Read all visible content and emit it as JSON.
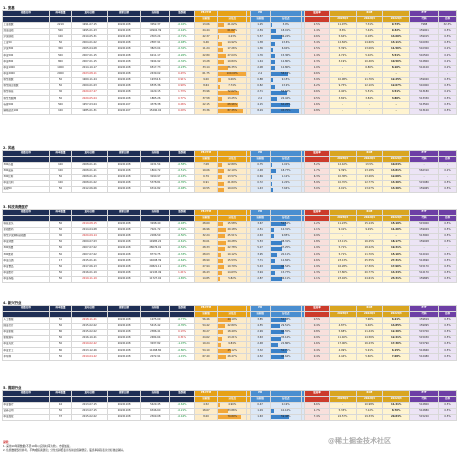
{
  "headers": {
    "row1": [
      "指数名称",
      "样本数量",
      "发布日期",
      "更新日期",
      "当前值",
      "涨跌幅",
      "PE-TTM",
      "",
      "",
      "PB",
      "",
      "",
      "股息率",
      "",
      "ROE",
      "",
      "ETF",
      ""
    ],
    "row2": [
      "",
      "",
      "",
      "",
      "",
      "",
      "当前值",
      "分位点",
      "",
      "当前值",
      "分位点",
      "",
      "",
      "2023Q3",
      "2022Q4",
      "2022Q3",
      "代码",
      "名称"
    ]
  },
  "colors": {
    "nav": "#1f2f55",
    "pe": "#e6a117",
    "pb": "#4a8ed0",
    "dividend": "#cc3b2b",
    "roe": "#d9a520",
    "etf": "#6d3fa5",
    "up": "#0a8a2e",
    "down": "#c81f1f",
    "pe_bar": "#f2a73a",
    "pb_bar": "#3b82c9"
  },
  "sections": [
    {
      "title": "1. 宽基",
      "rows": [
        [
          "上证指数",
          "2219",
          "1991-07-15",
          "20221108",
          "3052.37",
          "-0.16%",
          "13.06",
          "21.02%",
          "",
          "1.25",
          "3.9%",
          "",
          "2.5%",
          "11.97%",
          "7.31%",
          "9.73%",
          "7988",
          "32.3%"
        ],
        [
          "深证成指",
          "500",
          "1995-01-23",
          "20221108",
          "10902.39",
          "-0.44%",
          "24.44",
          "61.62%",
          "",
          "2.59",
          "18.01%",
          "",
          "1.4%",
          "8.6%",
          "7.44%",
          "9.32%",
          "159901",
          "0.5%"
        ],
        [
          "沪深创指",
          "100",
          "2010-05-31",
          "20221108",
          "2303.24",
          "-0.71%",
          "42.37",
          "4.23%",
          "",
          "5.57",
          "36.24%",
          "",
          "0.6%",
          "5.64%",
          "6.18%",
          "14.60%",
          "159915",
          "0.5%"
        ],
        [
          "上证50",
          "50",
          "2004-01-02",
          "20221108",
          "2587.91",
          "-0.48%",
          "9.46",
          "14.92%",
          "",
          "1.38",
          "13.6%",
          "",
          "3.4%",
          "12.84%",
          "14.60%",
          "13.11%",
          "510050",
          "0.5%"
        ],
        [
          "沪深300",
          "300",
          "2005-04-08",
          "20221108",
          "3823.04",
          "-0.32%",
          "11.24",
          "17.26%",
          "",
          "1.36",
          "6.60%",
          "",
          "2.5%",
          "5.39%",
          "13.06%",
          "11.56%",
          "510300",
          "0.2%"
        ],
        [
          "中证500",
          "500",
          "2007-01-15",
          "20221108",
          "6211.17",
          "-0.26%",
          "22.80",
          "27.04%",
          "",
          "1.76",
          "15.36%",
          "",
          "1.4%",
          "4.72%",
          "5.02%",
          "5.51%",
          "510500",
          "0.2%"
        ],
        [
          "中证800",
          "800",
          "2007-01-15",
          "20221108",
          "3944.92",
          "-0.32%",
          "13.28",
          "19.84%",
          "",
          "1.44",
          "12.80%",
          "",
          "2.3%",
          "3.19%",
          "10.46%",
          "10.56%",
          "512800",
          "0.2%"
        ],
        [
          "中证1000",
          "1000",
          "2014-10-17",
          "20221108",
          "6517.73",
          "-0.23%",
          "33.14",
          "36.35%",
          "",
          "2.08",
          "12.80%",
          "",
          "1.0%",
          "-",
          "6.80%",
          "8.10%",
          "512100",
          "0.2%"
        ],
        [
          "中证2000",
          "2000",
          "2023-08-11",
          "20221108",
          "2439.02",
          "0.43%",
          "61.75",
          "100.00%",
          "",
          "2.4",
          "58.11%",
          "",
          "0.6%",
          "-",
          "-",
          "-",
          "-",
          "-"
        ],
        [
          "恒生指数",
          "50",
          "1969-11-24",
          "20221108",
          "19334.6",
          "0.91%",
          "9.00",
          "9.06%",
          "",
          "0.88",
          "9.15%",
          "",
          "3.9%",
          "10.98%",
          "11.76%",
          "12.25%",
          "159920",
          "0.5%"
        ],
        [
          "恒生国企指数",
          "50",
          "2000-01-03",
          "20221108",
          "6535.36",
          "0.99%",
          "8.64",
          "7.74%",
          "",
          "0.82",
          "13.9%",
          "",
          "4.2%",
          "9.75%",
          "12.10%",
          "12.07%",
          "510900",
          "0.5%"
        ],
        [
          "恒生科技",
          "30",
          "2020-07-27",
          "20221108",
          "4129.15",
          "1.73%",
          "33.96",
          "72.62%",
          "",
          "2.71",
          "55.62%",
          "",
          "0.6%",
          "4.40%",
          "5.51%",
          "4.51%",
          "513180",
          "0.2%"
        ],
        [
          "恒生互联网",
          "50",
          "2020-05-04",
          "20221108",
          "1865.26",
          "0.77%",
          "37.58",
          "13.25%",
          "",
          "2.2",
          "22.42%",
          "",
          "0.5%",
          "3.82%",
          "3.84%",
          "3.80%",
          "513330",
          "0.5%"
        ],
        [
          "标普500",
          "500",
          "1957-03-04",
          "20221107",
          "4378.38",
          "0.26%",
          "22.15",
          "68.96%",
          "",
          "4.15",
          "64.28%",
          "",
          "1.6%",
          "-",
          "-",
          "-",
          "513500",
          "0.5%"
        ],
        [
          "纳斯达克100",
          "100",
          "1985-01-31",
          "20221107",
          "15290.02",
          "0.29%",
          "33.36",
          "87.35%",
          "",
          "8.29",
          "93.75%",
          "",
          "0.8%",
          "-",
          "-",
          "-",
          "513100",
          "0.5%"
        ]
      ]
    },
    {
      "title": "2. 风格",
      "rows": [
        [
          "300价值",
          "100",
          "2008-01-21",
          "20221108",
          "4131.54",
          "-0.58%",
          "7.08",
          "12.89%",
          "",
          "0.75",
          "1.01%",
          "",
          "5.2%",
          "12.42%",
          "13.5%",
          "10.64%",
          "-",
          "-"
        ],
        [
          "300成长",
          "100",
          "2008-01-21",
          "20221108",
          "1800.72",
          "-0.51%",
          "19.06",
          "22.10%",
          "",
          "2.48",
          "18.77%",
          "",
          "1.7%",
          "9.39%",
          "13.18%",
          "13.81%",
          "562310",
          "0.2%"
        ],
        [
          "300红利",
          "50",
          "2008-01-21",
          "20221108",
          "3290.97",
          "-0.43%",
          "6.79",
          "13.57%",
          "",
          "0.69",
          "1.12%",
          "",
          "6.3%",
          "10.38%",
          "13.26%",
          "12.08%",
          "-",
          "-"
        ],
        [
          "中证红利",
          "100",
          "2008-01-02",
          "20221108",
          "5378.81",
          "-0.35%",
          "6.91",
          "21.84%",
          "",
          "0.72",
          "2.20%",
          "",
          "5.9%",
          "10.70%",
          "12.77%",
          "13.40%",
          "515080",
          "0.5%"
        ],
        [
          "央视50",
          "50",
          "2012-06-06",
          "20221108",
          "6314.82",
          "-0.48%",
          "10.55",
          "19.04%",
          "",
          "1.43",
          "7.64%",
          "",
          "3.0%",
          "4.01%",
          "13.07%",
          "13.40%",
          "159965",
          "0.5%"
        ]
      ]
    },
    {
      "title": "3. 科技消费医疗",
      "rows": [
        [
          "科技龙头",
          "50",
          "2019-08-15",
          "20221108",
          "3298.40",
          "-0.48%",
          "28.69",
          "15.58%",
          "",
          "3.67",
          "51.52%",
          "",
          "1.2%",
          "11.23%",
          "15.14%",
          "15.19%",
          "515000",
          "0.5%"
        ],
        [
          "全指医药",
          "50",
          "2014-04-08",
          "20221108",
          "7021.72",
          "-0.59%",
          "26.96",
          "29.18%",
          "",
          "2.51",
          "12.31%",
          "",
          "1.1%",
          "9.41%",
          "9.29%",
          "11.26%",
          "159929",
          "0.5%"
        ],
        [
          "恒生沪深港科技指数",
          "30",
          "2020-09-14",
          "20221108",
          "2186.59",
          "-0.50%",
          "32.24",
          "25.51%",
          "",
          "2.63",
          "9.85%",
          "",
          "0.9%",
          "-",
          "-",
          "-",
          "513900",
          "0.5%"
        ],
        [
          "中证消费",
          "50",
          "2009-07-03",
          "20221108",
          "14985.22",
          "-0.61%",
          "30.01",
          "29.28%",
          "",
          "5.53",
          "38.31%",
          "",
          "1.8%",
          "13.11%",
          "16.25%",
          "18.17%",
          "159928",
          "0.5%"
        ],
        [
          "300消费",
          "50",
          "2007-07-02",
          "20221108",
          "28076.91",
          "-0.52%",
          "28.33",
          "22.78%",
          "",
          "5.27",
          "37.25%",
          "",
          "1.9%",
          "5.71%",
          "18.22%",
          "19.31%",
          "-",
          "-"
        ],
        [
          "300医药",
          "50",
          "2007-07-02",
          "20221108",
          "8770.75",
          "-0.33%",
          "28.03",
          "10.12%",
          "",
          "3.95",
          "20.11%",
          "",
          "1.0%",
          "5.71%",
          "11.70%",
          "15.16%",
          "512010",
          "0.5%"
        ],
        [
          "中证白酒",
          "17",
          "2015-01-21",
          "20221108",
          "14008.39",
          "-0.64%",
          "28.90",
          "15.53%",
          "",
          "7.71",
          "12.84%",
          "",
          "2.6%",
          "23.13%",
          "25.55%",
          "27.31%",
          "512690",
          "0.5%"
        ],
        [
          "中证食品",
          "50",
          "2017-06-13",
          "20221108",
          "20821.11",
          "-0.23%",
          "27.94",
          "19.79%",
          "",
          "5.43",
          "44.54%",
          "",
          "1.9%",
          "16.28%",
          "17.30%",
          "17.96%",
          "515170",
          "0.5%"
        ],
        [
          "中证医疗",
          "50",
          "2016-01-19",
          "20221108",
          "12145.49",
          "1.21%",
          "26.43",
          "14.63%",
          "",
          "3.94",
          "15.77%",
          "",
          "1.3%",
          "17.80%",
          "20.77%",
          "14.44%",
          "512170",
          "0.5%"
        ],
        [
          "中证养殖",
          "50",
          "2019-11-19",
          "20221108",
          "11727.02",
          "-1.65%",
          "14.85",
          "5.82%",
          "",
          "2.87",
          "36.11%",
          "",
          "1.1%",
          "23.94%",
          "24.61%",
          "23.31%",
          "159865",
          "0.5%"
        ]
      ]
    },
    {
      "title": "4. 新兴行业",
      "rows": [
        [
          "人工智能",
          "50",
          "2018-11-21",
          "20221108",
          "1075.09",
          "-0.77%",
          "56.46",
          "44.19%",
          "",
          "3.85",
          "52.38%",
          "",
          "0.5%",
          "-",
          "7.96%",
          "6.21%",
          "159819",
          "0.5%"
        ],
        [
          "国证芯片",
          "50",
          "2015-02-02",
          "20221108",
          "5415.42",
          "-0.35%",
          "54.42",
          "22.80%",
          "",
          "4.55",
          "29.51%",
          "",
          "0.4%",
          "4.87%",
          "9.46%",
          "14.85%",
          "159995",
          "0.5%"
        ],
        [
          "中证新能",
          "80",
          "2015-02-02",
          "20221108",
          "2386.41",
          "0.13%",
          "30.27",
          "18.49%",
          "",
          "2.99",
          "44.55%",
          "",
          "0.8%",
          "5.68%",
          "11.44%",
          "12.40%",
          "515700",
          "0.5%"
        ],
        [
          "新能源车",
          "50",
          "2016-10-21",
          "20221108",
          "2484.64",
          "0.31%",
          "24.62",
          "13.21%",
          "",
          "3.63",
          "35.14%",
          "",
          "0.9%",
          "11.40%",
          "14.56%",
          "12.41%",
          "515030",
          "0.5%"
        ],
        [
          "中证光伏",
          "50",
          "2019-02-22",
          "20221108",
          "3037.82",
          "-1.07%",
          "19.24",
          "9.84%",
          "",
          "2.48",
          "22.86%",
          "",
          "1.6%",
          "17.06%",
          "16.23%",
          "17.36%",
          "515790",
          "0.5%"
        ],
        [
          "中证军工",
          "80",
          "2013-12-26",
          "20221108",
          "11268.80",
          "-0.80%",
          "54.10",
          "45.12%",
          "",
          "3.32",
          "52.71%",
          "",
          "0.4%",
          "4.99%",
          "5.91%",
          "6.15%",
          "512660",
          "0.5%"
        ],
        [
          "半导体",
          "50",
          "2019-04-22",
          "20221108",
          "2072.91",
          "-1.15%",
          "67.40",
          "28.47%",
          "",
          "4.52",
          "45.64%",
          "",
          "0.4%",
          "4.44%",
          "5.60%",
          "7.08%",
          "512480",
          "0.5%"
        ]
      ]
    },
    {
      "title": "5. 周期行业",
      "rows": [
        [
          "中证银行",
          "42",
          "2013-07-15",
          "20221108",
          "5429.45",
          "-0.64%",
          "4.52",
          "4.90%",
          "",
          "0.47",
          "0.19%",
          "",
          "6.6%",
          "-",
          "10.98%",
          "11.41%",
          "512800",
          "0.5%"
        ],
        [
          "证券公司",
          "50",
          "2013-07-15",
          "20221108",
          "6346.60",
          "-0.21%",
          "18.67",
          "33.86%",
          "",
          "1.29",
          "10.12%",
          "",
          "1.7%",
          "5.33%",
          "7.12%",
          "8.76%",
          "512880",
          "0.5%"
        ],
        [
          "中证煤炭",
          "37",
          "2015-02-02",
          "20221108",
          "2309.08",
          "-0.44%",
          "8.00",
          "79.89%",
          "",
          "1.63",
          "59.48%",
          "",
          "7.4%",
          "24.57%",
          "19.33%",
          "20.84%",
          "515220",
          "0.5%"
        ]
      ]
    }
  ],
  "notes": [
    "说明：",
    "1. 采用10年期数据(不足10年以实际时间为准)，市值加权。",
    "2. 估值数据仅供参考，不构成投资建议；分位点越低表示当前估值越便宜，股息率越高表示分红收益越好。"
  ],
  "watermark": "@稀土掘金技术社区"
}
